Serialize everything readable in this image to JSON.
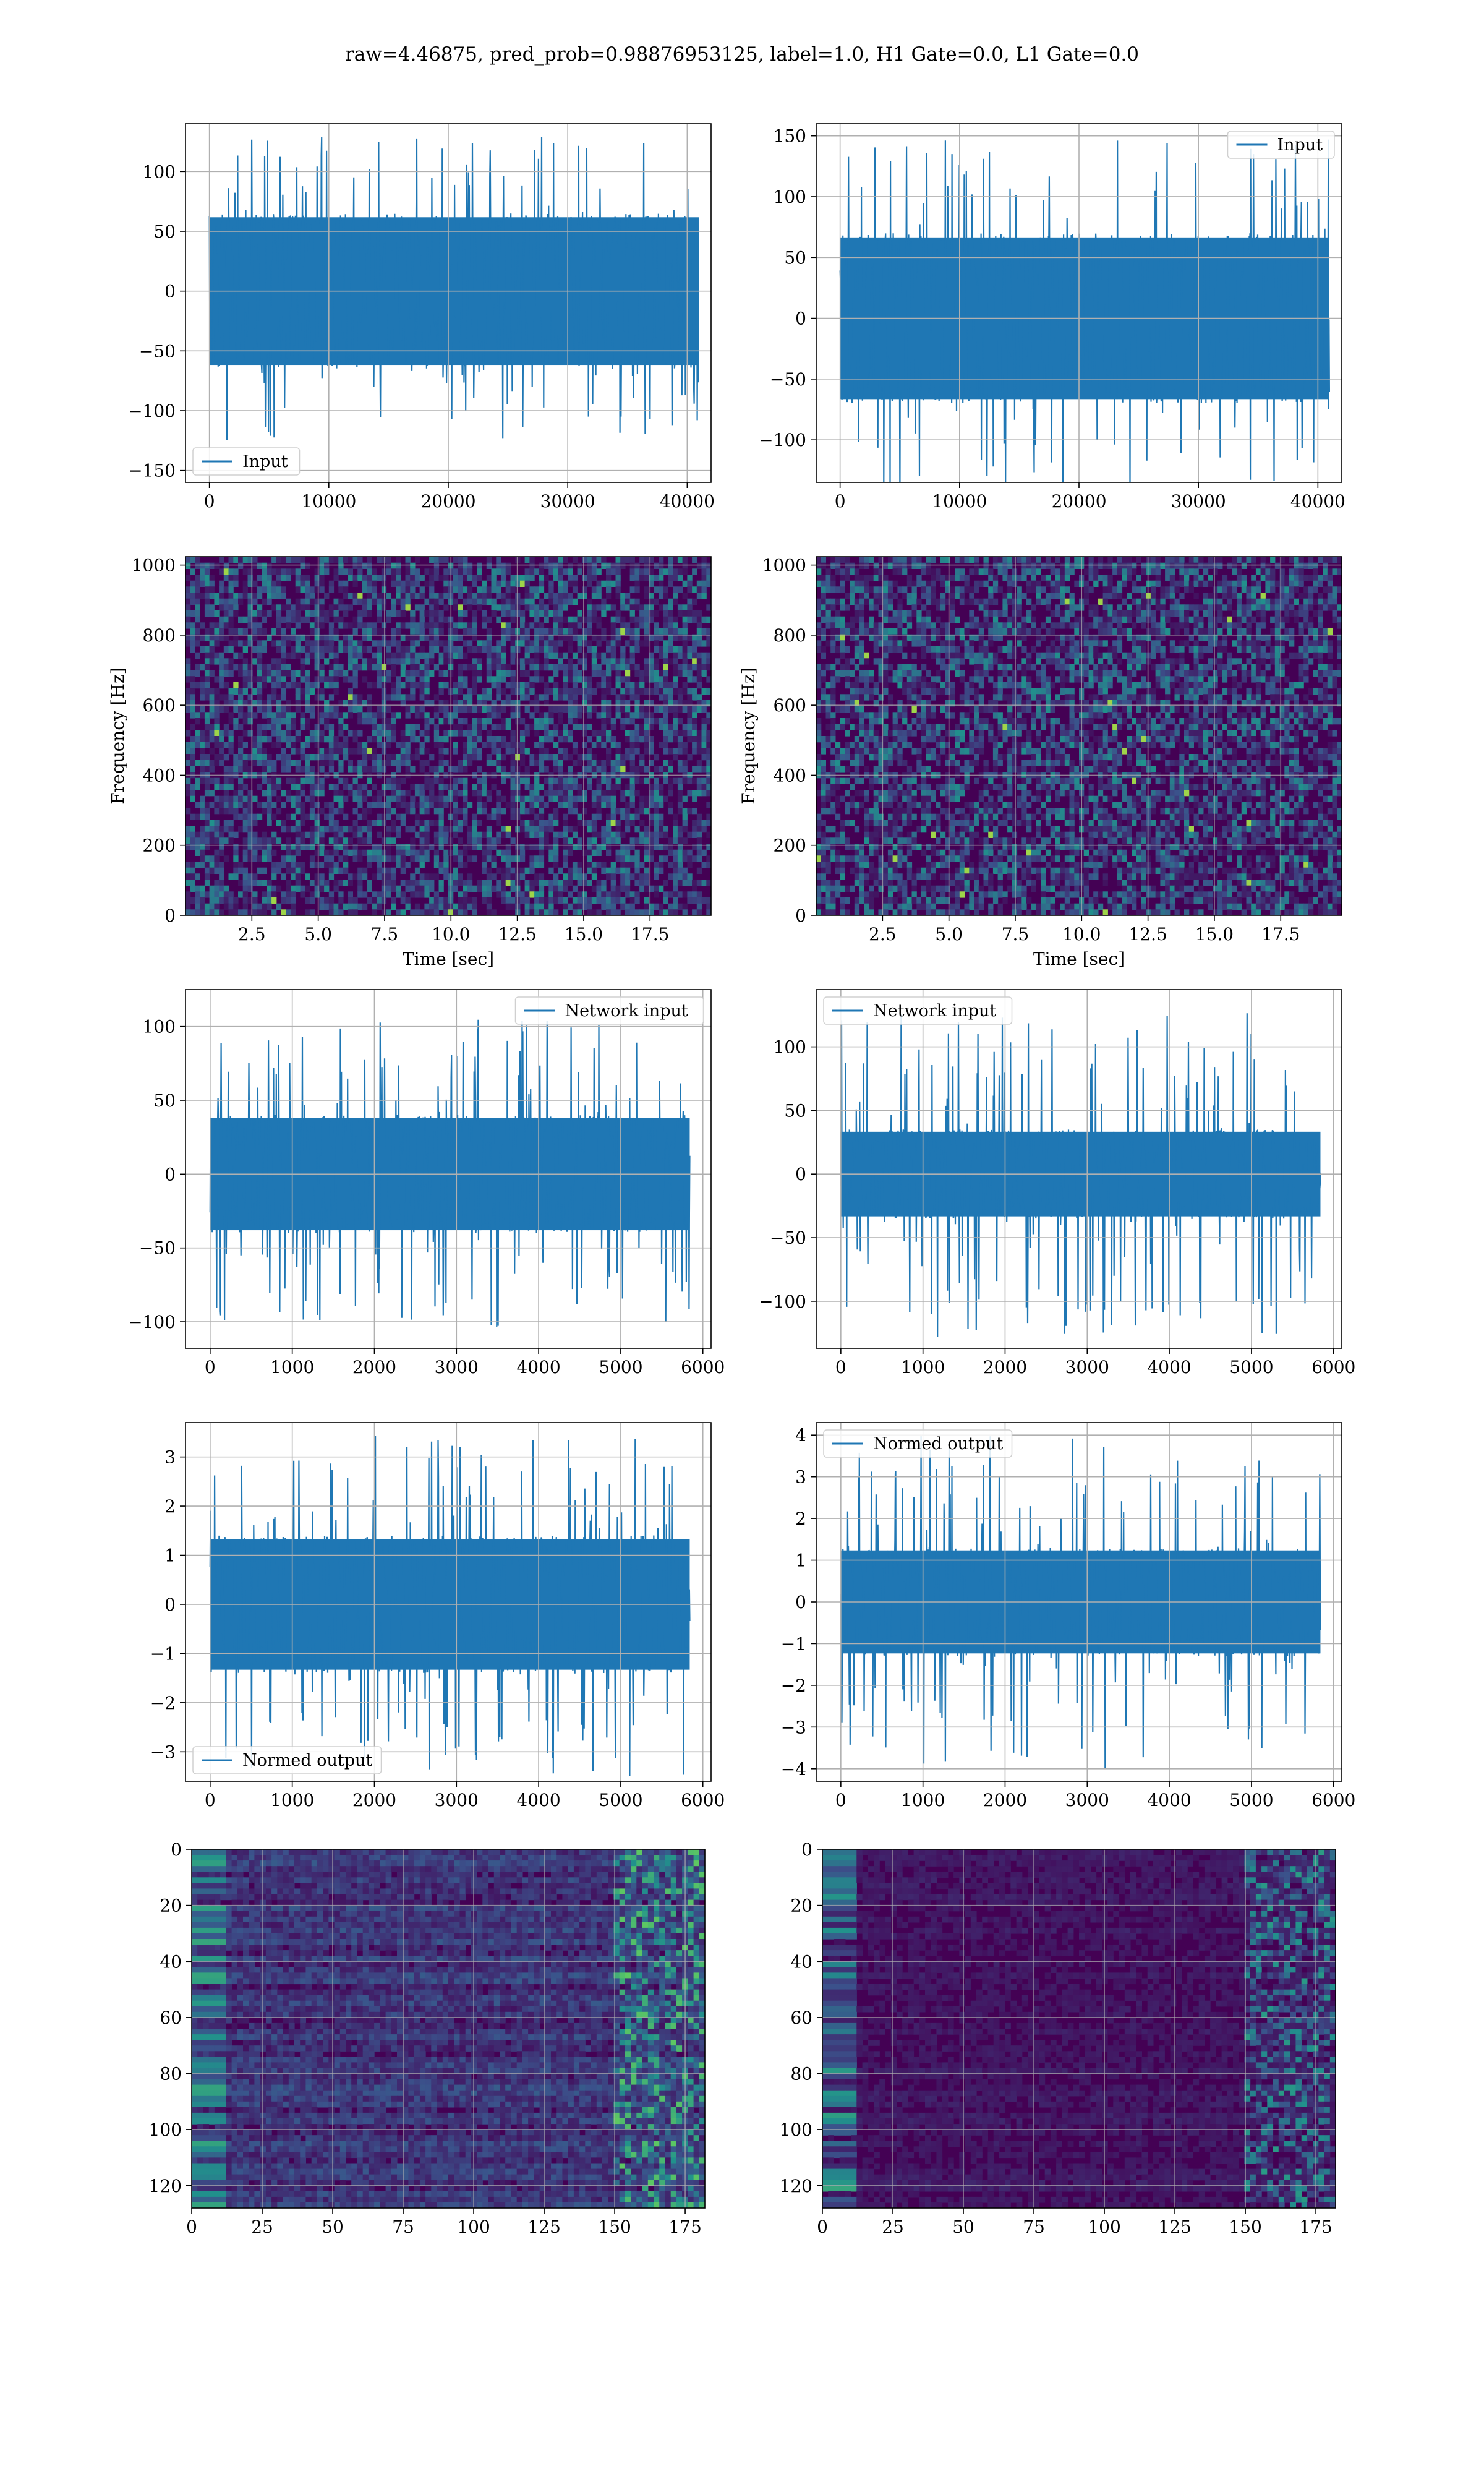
{
  "suptitle": "raw=4.46875, pred_prob=0.98876953125, label=1.0, H1 Gate=0.0, L1 Gate=0.0",
  "colors": {
    "series": "#1f77b4",
    "grid": "#b0b0b0"
  },
  "chart_data": [
    {
      "id": "ts-h1-input",
      "type": "line",
      "xlim": [
        -2000,
        42000
      ],
      "ylim": [
        -160,
        140
      ],
      "xticks": [
        0,
        10000,
        20000,
        30000,
        40000
      ],
      "yticks": [
        -150,
        -100,
        -50,
        0,
        50,
        100
      ],
      "legend": {
        "entries": [
          "Input"
        ],
        "loc": "lower-left"
      },
      "amplitude_core": 65,
      "amplitude_peak": 130,
      "n_points": 40960,
      "grid": true
    },
    {
      "id": "ts-l1-input",
      "type": "line",
      "xlim": [
        -2000,
        42000
      ],
      "ylim": [
        -135,
        160
      ],
      "xticks": [
        0,
        10000,
        20000,
        30000,
        40000
      ],
      "yticks": [
        -100,
        -50,
        0,
        50,
        100,
        150
      ],
      "legend": {
        "entries": [
          "Input"
        ],
        "loc": "upper-right"
      },
      "amplitude_core": 70,
      "amplitude_peak": 147,
      "n_points": 40960,
      "grid": true
    },
    {
      "id": "spec-h1",
      "type": "heatmap",
      "xlim": [
        0,
        19.8
      ],
      "ylim": [
        0,
        1024
      ],
      "xticks": [
        2.5,
        5.0,
        7.5,
        10.0,
        12.5,
        15.0,
        17.5
      ],
      "yticks": [
        0,
        200,
        400,
        600,
        800,
        1000
      ],
      "xlabel": "Time [sec]",
      "ylabel": "Frequency [Hz]",
      "colormap": "viridis",
      "grid": true
    },
    {
      "id": "spec-l1",
      "type": "heatmap",
      "xlim": [
        0,
        19.8
      ],
      "ylim": [
        0,
        1024
      ],
      "xticks": [
        2.5,
        5.0,
        7.5,
        10.0,
        12.5,
        15.0,
        17.5
      ],
      "yticks": [
        0,
        200,
        400,
        600,
        800,
        1000
      ],
      "xlabel": "Time [sec]",
      "ylabel": "Frequency [Hz]",
      "colormap": "viridis",
      "grid": true
    },
    {
      "id": "ts-h1-network-input",
      "type": "line",
      "xlim": [
        -300,
        6100
      ],
      "ylim": [
        -118,
        125
      ],
      "xticks": [
        0,
        1000,
        2000,
        3000,
        4000,
        5000,
        6000
      ],
      "yticks": [
        -100,
        -50,
        0,
        50,
        100
      ],
      "legend": {
        "entries": [
          "Network input"
        ],
        "loc": "upper-right"
      },
      "amplitude_core": 40,
      "amplitude_peak": 105,
      "n_points": 5840,
      "grid": true
    },
    {
      "id": "ts-l1-network-input",
      "type": "line",
      "xlim": [
        -300,
        6100
      ],
      "ylim": [
        -137,
        145
      ],
      "xticks": [
        0,
        1000,
        2000,
        3000,
        4000,
        5000,
        6000
      ],
      "yticks": [
        -100,
        -50,
        0,
        50,
        100
      ],
      "legend": {
        "entries": [
          "Network input"
        ],
        "loc": "upper-left"
      },
      "amplitude_core": 35,
      "amplitude_peak": 128,
      "n_points": 5840,
      "grid": true
    },
    {
      "id": "ts-h1-normed-output",
      "type": "line",
      "xlim": [
        -300,
        6100
      ],
      "ylim": [
        -3.6,
        3.7
      ],
      "xticks": [
        0,
        1000,
        2000,
        3000,
        4000,
        5000,
        6000
      ],
      "yticks": [
        -3,
        -2,
        -1,
        0,
        1,
        2,
        3
      ],
      "legend": {
        "entries": [
          "Normed output"
        ],
        "loc": "lower-left"
      },
      "amplitude_core": 1.4,
      "amplitude_peak": 3.5,
      "n_points": 5840,
      "grid": true
    },
    {
      "id": "ts-l1-normed-output",
      "type": "line",
      "xlim": [
        -300,
        6100
      ],
      "ylim": [
        -4.3,
        4.3
      ],
      "xticks": [
        0,
        1000,
        2000,
        3000,
        4000,
        5000,
        6000
      ],
      "yticks": [
        -4,
        -3,
        -2,
        -1,
        0,
        1,
        2,
        3,
        4
      ],
      "legend": {
        "entries": [
          "Normed output"
        ],
        "loc": "upper-left"
      },
      "amplitude_core": 1.3,
      "amplitude_peak": 4.0,
      "n_points": 5840,
      "grid": true
    },
    {
      "id": "feat-h1",
      "type": "heatmap",
      "xlim": [
        0,
        182
      ],
      "ylim": [
        128,
        0
      ],
      "xticks": [
        0,
        25,
        50,
        75,
        100,
        125,
        150,
        175
      ],
      "yticks": [
        0,
        20,
        40,
        60,
        80,
        100,
        120
      ],
      "colormap": "viridis",
      "grid": true
    },
    {
      "id": "feat-l1",
      "type": "heatmap",
      "xlim": [
        0,
        182
      ],
      "ylim": [
        128,
        0
      ],
      "xticks": [
        0,
        25,
        50,
        75,
        100,
        125,
        150,
        175
      ],
      "yticks": [
        0,
        20,
        40,
        60,
        80,
        100,
        120
      ],
      "colormap": "viridis",
      "grid": true
    }
  ]
}
